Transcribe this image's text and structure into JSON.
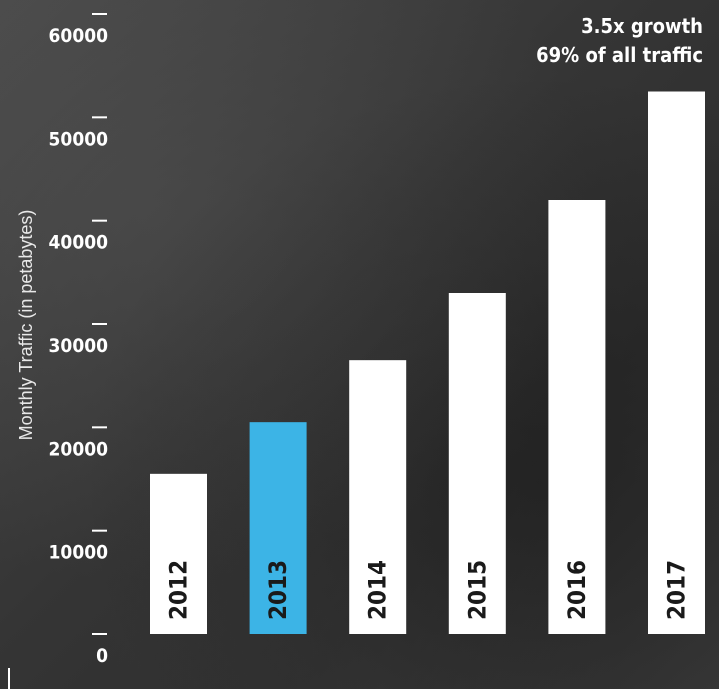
{
  "chart_data": {
    "type": "bar",
    "categories": [
      "2012",
      "2013",
      "2014",
      "2015",
      "2016",
      "2017"
    ],
    "values": [
      15500,
      20500,
      26500,
      33000,
      42000,
      52500
    ],
    "highlight_index": 1,
    "bar_color": "#ffffff",
    "highlight_color": "#3cb4e6",
    "ylabel": "Monthly Traffic (in petabytes)",
    "ylim": [
      0,
      60000
    ],
    "yticks": [
      0,
      10000,
      20000,
      30000,
      40000,
      50000,
      60000
    ],
    "ytick_labels": [
      "0",
      "10000",
      "20000",
      "30000",
      "40000",
      "50000",
      "60000"
    ],
    "annotation": [
      "3.5x growth",
      "69% of all traffic"
    ],
    "annotation_position": "top-right",
    "grid": false
  }
}
